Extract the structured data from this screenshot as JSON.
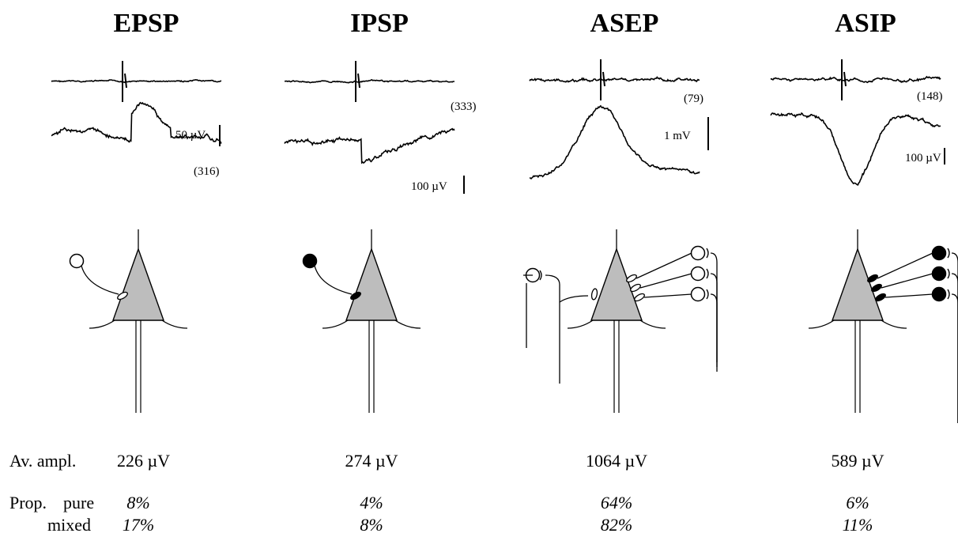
{
  "panels": [
    {
      "title": "EPSP",
      "scale": "50 µV",
      "count": "(316)",
      "amplitude": "226 µV",
      "pure": "8%",
      "mixed": "17%"
    },
    {
      "title": "IPSP",
      "scale": "100 µV",
      "count": "(333)",
      "amplitude": "274 µV",
      "pure": "4%",
      "mixed": "8%"
    },
    {
      "title": "ASEP",
      "scale": "1 mV",
      "count": "(79)",
      "amplitude": "1064 µV",
      "pure": "64%",
      "mixed": "82%"
    },
    {
      "title": "ASIP",
      "scale": "100 µV",
      "count": "(148)",
      "amplitude": "589 µV",
      "pure": "6%",
      "mixed": "11%"
    }
  ],
  "row_labels": {
    "amplitude": "Av. ampl.",
    "prop": "Prop.",
    "pure": "pure",
    "mixed": "mixed"
  }
}
